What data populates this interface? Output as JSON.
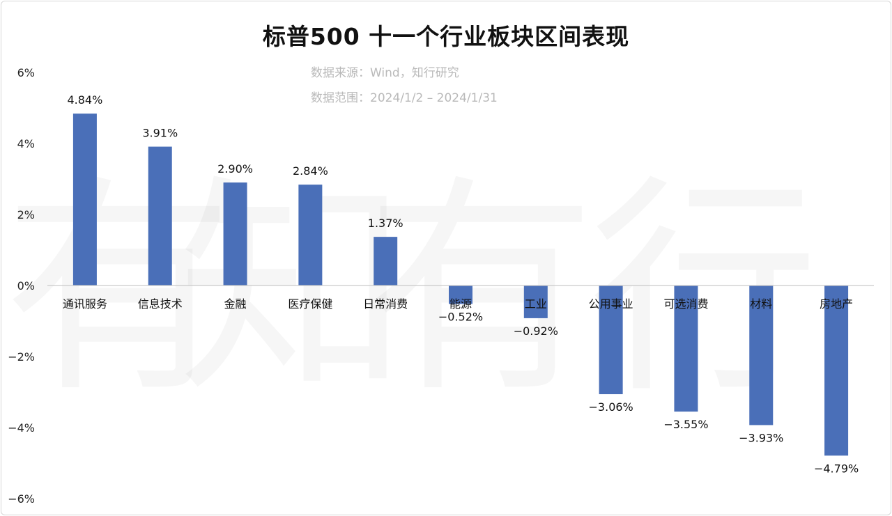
{
  "title": "标普500 十一个行业板块区间表现",
  "subtitle_source": "数据来源：Wind，知行研究",
  "subtitle_range": "数据范围：2024/1/2 – 2024/1/31",
  "watermark": "有知有行",
  "colors": {
    "bar": "#4a6fb8",
    "axis": "#c9c9c9",
    "text": "#111111",
    "subtitle": "#b9b9b9"
  },
  "chart_data": {
    "type": "bar",
    "categories": [
      "通讯服务",
      "信息技术",
      "金融",
      "医疗保健",
      "日常消费",
      "能源",
      "工业",
      "公用事业",
      "可选消费",
      "材料",
      "房地产"
    ],
    "values": [
      4.84,
      3.91,
      2.9,
      2.84,
      1.37,
      -0.52,
      -0.92,
      -3.06,
      -3.55,
      -3.93,
      -4.79
    ],
    "value_labels": [
      "4.84%",
      "3.91%",
      "2.90%",
      "2.84%",
      "1.37%",
      "−0.52%",
      "−0.92%",
      "−3.06%",
      "−3.55%",
      "−3.93%",
      "−4.79%"
    ],
    "ylim": [
      -6,
      6
    ],
    "yticks": [
      6,
      4,
      2,
      0,
      -2,
      -4,
      -6
    ],
    "ytick_labels": [
      "6%",
      "4%",
      "2%",
      "0%",
      "−2%",
      "−4%",
      "−6%"
    ],
    "grid": false,
    "legend": "none"
  }
}
